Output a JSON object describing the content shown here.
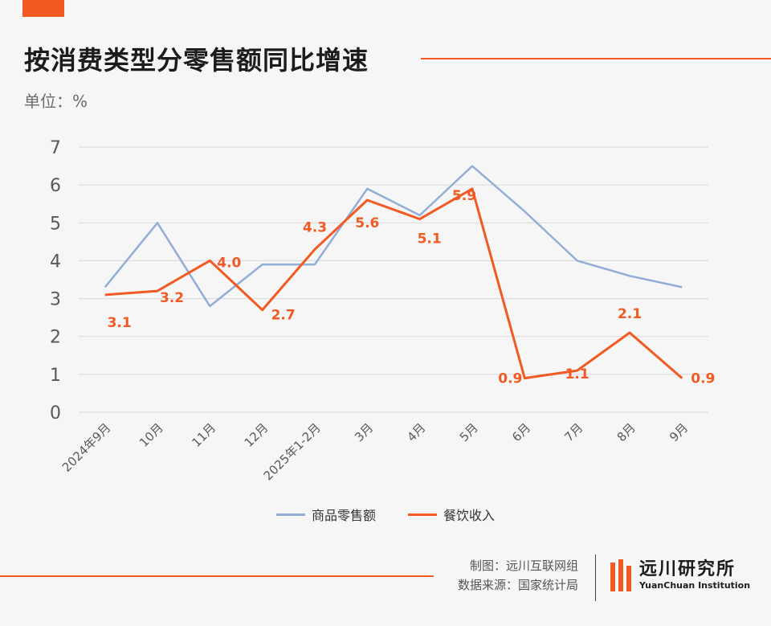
{
  "header": {
    "title": "按消费类型分零售额同比增速",
    "unit": "单位：%"
  },
  "colors": {
    "accent": "#f15a22",
    "series_goods": "#93aed6",
    "series_catering": "#f15a22"
  },
  "chart_data": {
    "type": "line",
    "categories": [
      "2024年9月",
      "10月",
      "11月",
      "12月",
      "2025年1-2月",
      "3月",
      "4月",
      "5月",
      "6月",
      "7月",
      "8月",
      "9月"
    ],
    "series": [
      {
        "name": "商品零售额",
        "values": [
          3.3,
          5.0,
          2.8,
          3.9,
          3.9,
          5.9,
          5.2,
          6.5,
          5.3,
          4.0,
          3.6,
          3.3
        ]
      },
      {
        "name": "餐饮收入",
        "values": [
          3.1,
          3.2,
          4.0,
          2.7,
          4.3,
          5.6,
          5.1,
          5.9,
          0.9,
          1.1,
          2.1,
          0.9
        ],
        "labels": [
          "3.1",
          "3.2",
          "4.0",
          "2.7",
          "4.3",
          "5.6",
          "5.1",
          "5.9",
          "0.9",
          "1.1",
          "2.1",
          "0.9"
        ]
      }
    ],
    "yticks": [
      "0",
      "1",
      "2",
      "3",
      "4",
      "5",
      "6",
      "7"
    ],
    "ylim": [
      0,
      7
    ],
    "grid": true,
    "legend_position": "bottom"
  },
  "footer": {
    "credit_chart": "制图：远川互联网组",
    "credit_source": "数据来源：国家统计局",
    "logo_cn": "远川研究所",
    "logo_en": "YuanChuan Institution"
  }
}
